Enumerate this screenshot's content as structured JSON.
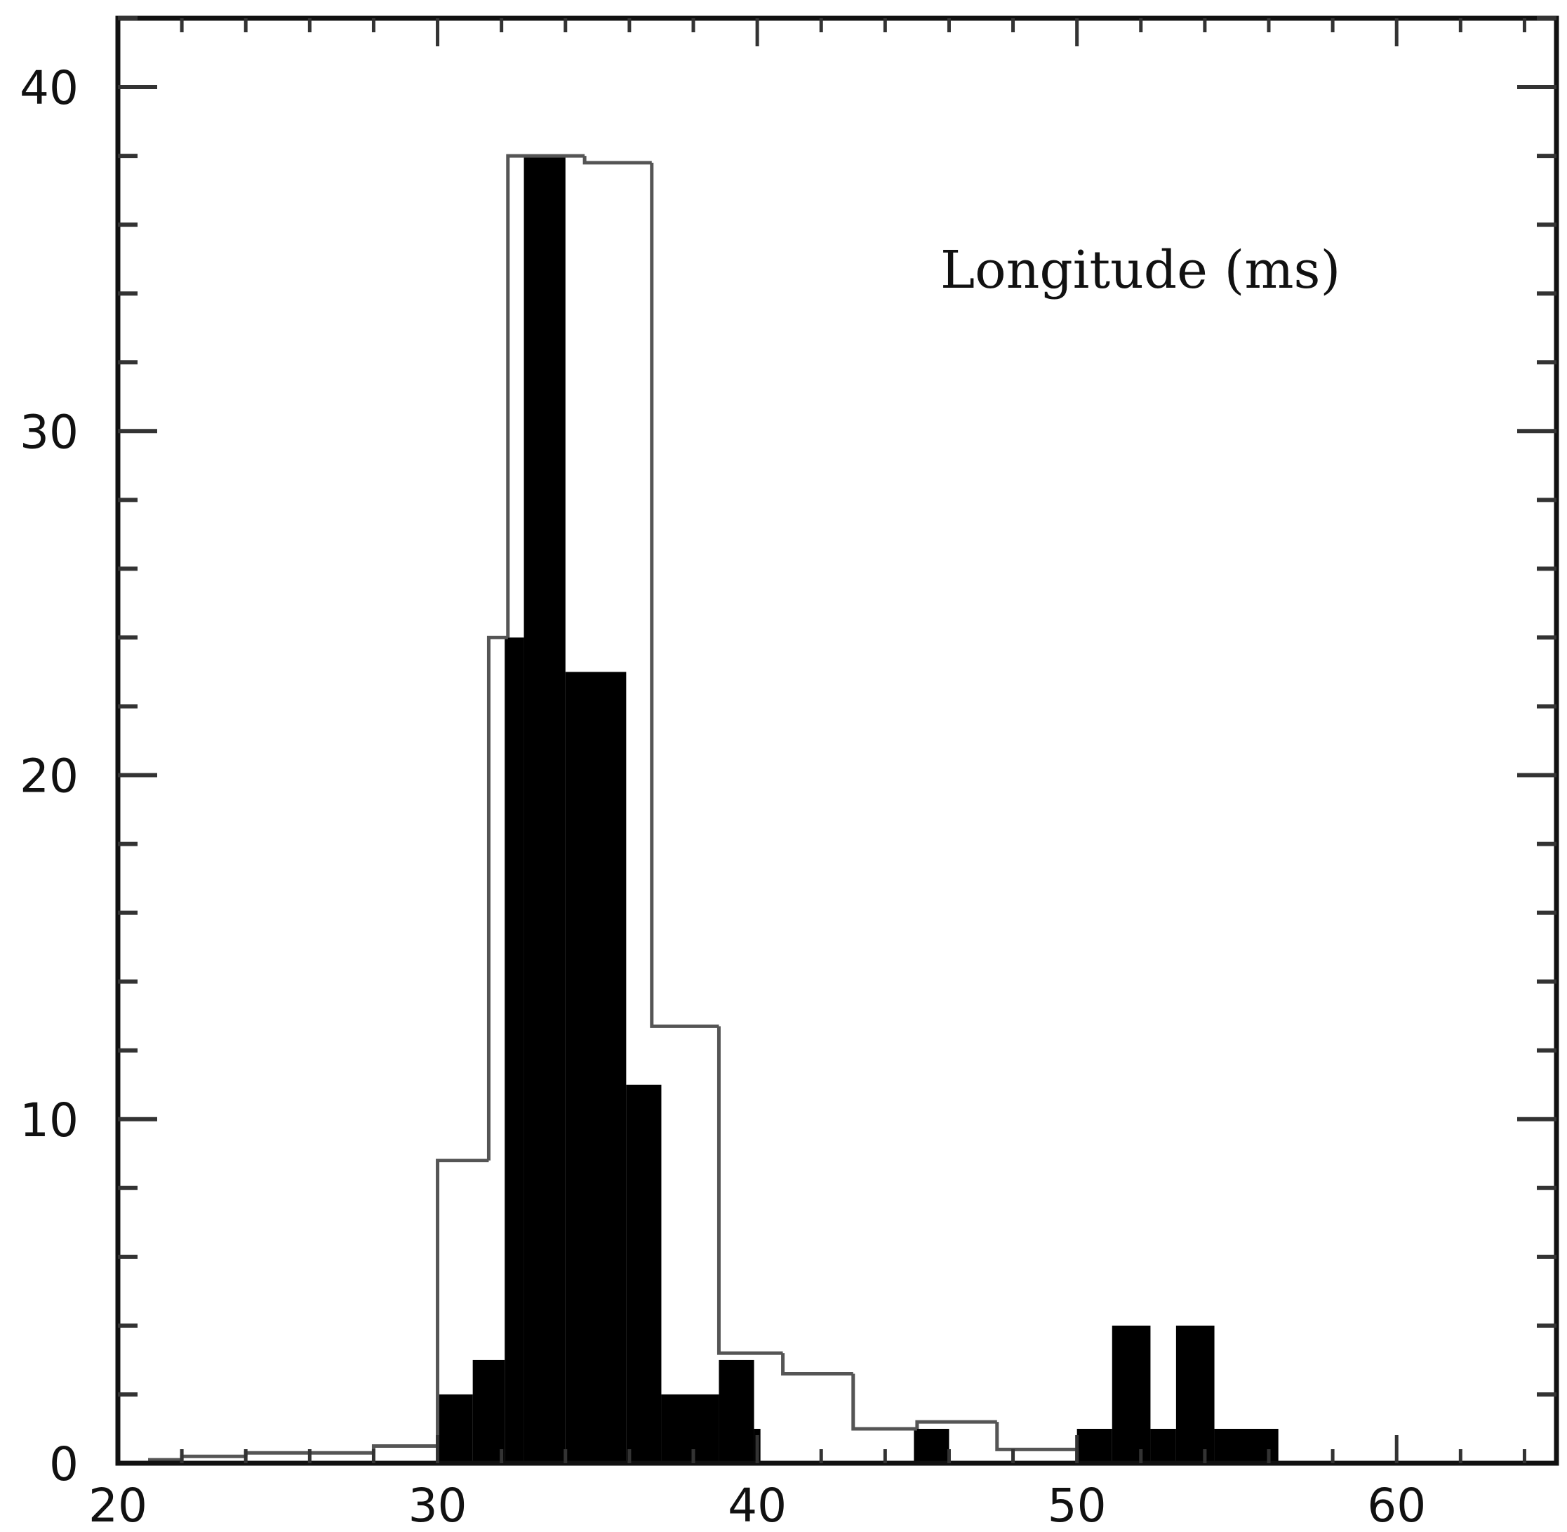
{
  "chart_data": {
    "type": "bar",
    "title": "",
    "xlabel": "",
    "ylabel": "",
    "xlim": [
      20,
      65
    ],
    "ylim": [
      0,
      42
    ],
    "x_ticks": [
      20,
      30,
      40,
      50,
      60
    ],
    "y_ticks": [
      0,
      10,
      20,
      30,
      40
    ],
    "annotation": "Longitude (ms)",
    "grid": false,
    "legend": "none",
    "series": [
      {
        "style": "outline",
        "color": "#555555",
        "bins": [
          {
            "x0": 21,
            "x1": 22,
            "value": 0.1
          },
          {
            "x0": 22,
            "x1": 24,
            "value": 0.2
          },
          {
            "x0": 24,
            "x1": 26,
            "value": 0.3
          },
          {
            "x0": 26,
            "x1": 28,
            "value": 0.3
          },
          {
            "x0": 28,
            "x1": 30,
            "value": 0.5
          },
          {
            "x0": 30,
            "x1": 31.6,
            "value": 8.8
          },
          {
            "x0": 31.6,
            "x1": 32.2,
            "value": 24
          },
          {
            "x0": 32.2,
            "x1": 34.6,
            "value": 38
          },
          {
            "x0": 34.6,
            "x1": 36.7,
            "value": 37.8
          },
          {
            "x0": 36.7,
            "x1": 38.8,
            "value": 12.7
          },
          {
            "x0": 38.8,
            "x1": 40.8,
            "value": 3.2
          },
          {
            "x0": 40.8,
            "x1": 43,
            "value": 2.6
          },
          {
            "x0": 43,
            "x1": 45,
            "value": 1
          },
          {
            "x0": 45,
            "x1": 47.5,
            "value": 1.2
          },
          {
            "x0": 47.5,
            "x1": 50,
            "value": 0.4
          }
        ]
      },
      {
        "style": "filled",
        "color": "#000000",
        "bins": [
          {
            "x0": 30,
            "x1": 31.1,
            "value": 2
          },
          {
            "x0": 31.1,
            "x1": 32.1,
            "value": 3
          },
          {
            "x0": 32.1,
            "x1": 32.7,
            "value": 24
          },
          {
            "x0": 32.7,
            "x1": 34,
            "value": 38
          },
          {
            "x0": 34,
            "x1": 35.9,
            "value": 23
          },
          {
            "x0": 35.9,
            "x1": 37,
            "value": 11
          },
          {
            "x0": 37,
            "x1": 38.8,
            "value": 2
          },
          {
            "x0": 38.8,
            "x1": 39.9,
            "value": 3
          },
          {
            "x0": 39.9,
            "x1": 40.1,
            "value": 1
          },
          {
            "x0": 44.9,
            "x1": 46,
            "value": 1
          },
          {
            "x0": 50,
            "x1": 51.1,
            "value": 1
          },
          {
            "x0": 51.1,
            "x1": 52.3,
            "value": 4
          },
          {
            "x0": 52.3,
            "x1": 53.1,
            "value": 1
          },
          {
            "x0": 53.1,
            "x1": 54.3,
            "value": 4
          },
          {
            "x0": 54.3,
            "x1": 56.3,
            "value": 1
          }
        ]
      }
    ]
  }
}
